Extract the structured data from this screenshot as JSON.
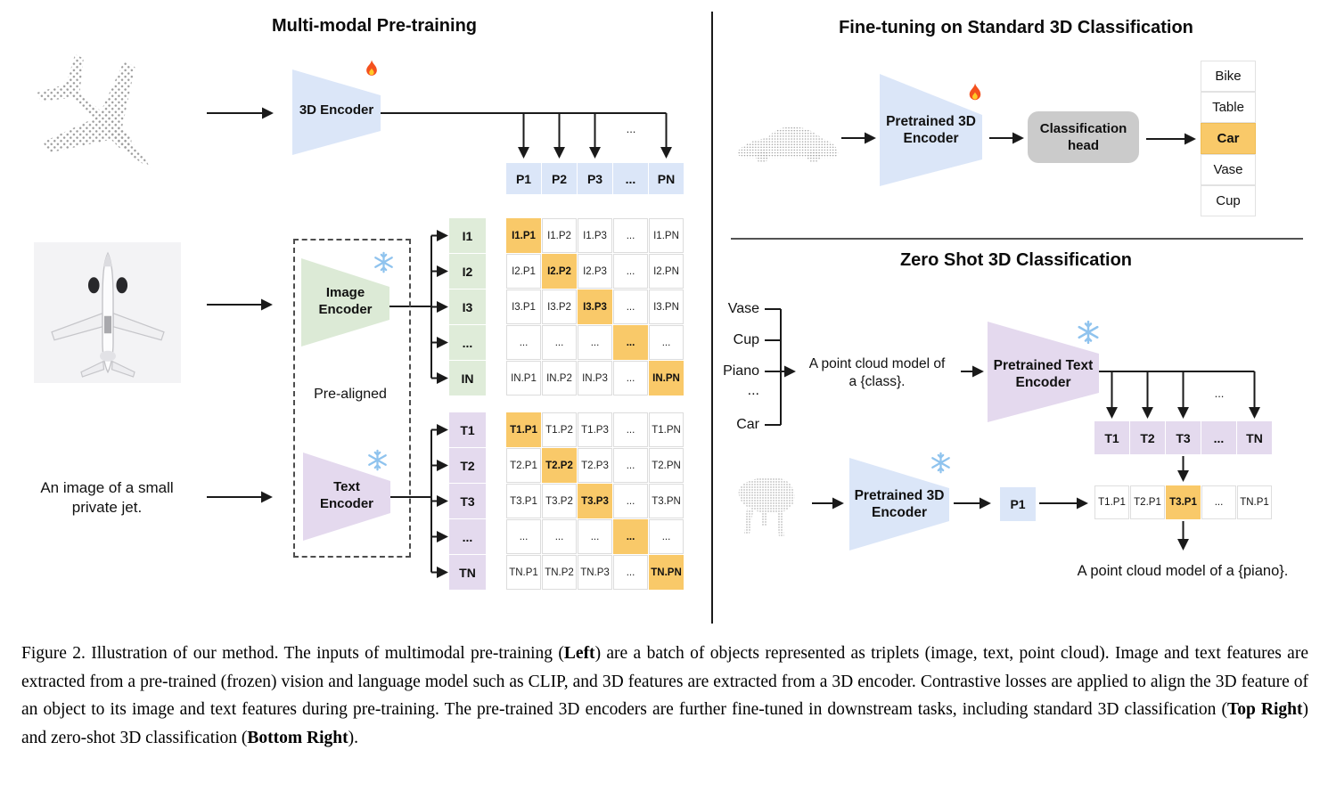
{
  "left_panel": {
    "title": "Multi-modal Pre-training",
    "encoder_3d_label": "3D Encoder",
    "p_row": [
      "P1",
      "P2",
      "P3",
      "...",
      "PN"
    ],
    "p_drop_ellipsis": "...",
    "image_encoder_label": "Image\nEncoder",
    "text_encoder_label": "Text\nEncoder",
    "pre_aligned_label": "Pre-aligned",
    "image_input_caption": "An image of a small\nprivate jet.",
    "i_headers": [
      "I1",
      "I2",
      "I3",
      "...",
      "IN"
    ],
    "t_headers": [
      "T1",
      "T2",
      "T3",
      "...",
      "TN"
    ],
    "i_matrix": [
      [
        "I1.P1",
        "I1.P2",
        "I1.P3",
        "...",
        "I1.PN"
      ],
      [
        "I2.P1",
        "I2.P2",
        "I2.P3",
        "...",
        "I2.PN"
      ],
      [
        "I3.P1",
        "I3.P2",
        "I3.P3",
        "...",
        "I3.PN"
      ],
      [
        "...",
        "...",
        "...",
        "...",
        "..."
      ],
      [
        "IN.P1",
        "IN.P2",
        "IN.P3",
        "...",
        "IN.PN"
      ]
    ],
    "t_matrix": [
      [
        "T1.P1",
        "T1.P2",
        "T1.P3",
        "...",
        "T1.PN"
      ],
      [
        "T2.P1",
        "T2.P2",
        "T2.P3",
        "...",
        "T2.PN"
      ],
      [
        "T3.P1",
        "T3.P2",
        "T3.P3",
        "...",
        "T3.PN"
      ],
      [
        "...",
        "...",
        "...",
        "...",
        "..."
      ],
      [
        "TN.P1",
        "TN.P2",
        "TN.P3",
        "...",
        "TN.PN"
      ]
    ]
  },
  "top_right_panel": {
    "title": "Fine-tuning on Standard 3D Classification",
    "encoder_label": "Pretrained 3D\nEncoder",
    "head_label": "Classification\nhead",
    "classes": [
      "Bike",
      "Table",
      "Car",
      "Vase",
      "Cup"
    ],
    "highlighted_class_index": 2
  },
  "bottom_right_panel": {
    "title": "Zero Shot 3D Classification",
    "prompt_classes": [
      "Vase",
      "Cup",
      "Piano",
      "...",
      "Car"
    ],
    "prompt_text": "A point cloud model of\na {class}.",
    "text_encoder_label": "Pretrained Text\nEncoder",
    "t_row": [
      "T1",
      "T2",
      "T3",
      "...",
      "TN"
    ],
    "branch_ellipsis": "...",
    "encoder_3d_label": "Pretrained 3D\nEncoder",
    "p1_label": "P1",
    "result_row": [
      "T1.P1",
      "T2.P1",
      "T3.P1",
      "...",
      "TN.P1"
    ],
    "result_highlight_index": 2,
    "result_text": "A point cloud model of a {piano}."
  },
  "caption": {
    "segments": [
      {
        "text": "Figure 2. Illustration of our method. The inputs of multimodal pre-training (",
        "bold": false
      },
      {
        "text": "Left",
        "bold": true
      },
      {
        "text": ") are a batch of objects represented as triplets (image, text, point cloud). Image and text features are extracted from a pre-trained (frozen) vision and language model such as CLIP, and 3D features are extracted from a 3D encoder. Contrastive losses are applied to align the 3D feature of an object to its image and text features during pre-training. The pre-trained 3D encoders are further fine-tuned in downstream tasks, including standard 3D classification (",
        "bold": false
      },
      {
        "text": "Top Right",
        "bold": true
      },
      {
        "text": ") and zero-shot 3D classification (",
        "bold": false
      },
      {
        "text": "Bottom Right",
        "bold": true
      },
      {
        "text": ").",
        "bold": false
      }
    ]
  },
  "colors": {
    "encoder_blue": "#dbe6f8",
    "encoder_green": "#dcead6",
    "encoder_purple": "#e4d9ee",
    "highlight_orange": "#f9c969",
    "head_gray": "#cbcbcb"
  }
}
